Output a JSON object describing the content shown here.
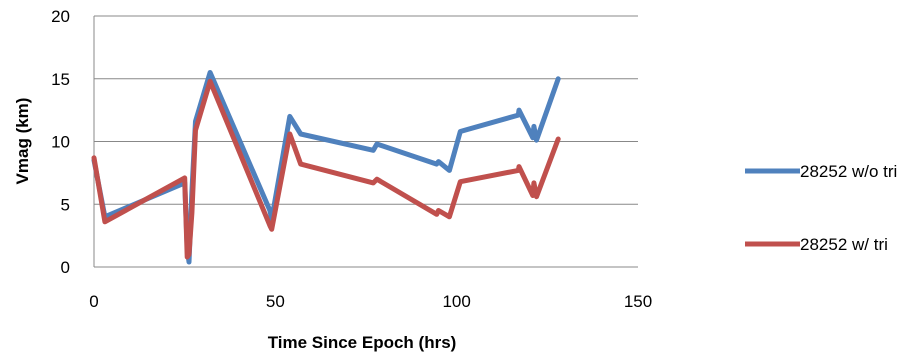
{
  "chart_data": {
    "type": "line",
    "xlabel": "Time Since  Epoch  (hrs)",
    "ylabel": "Vmag (km)",
    "xlim": [
      0,
      150
    ],
    "ylim": [
      0,
      20
    ],
    "xticks": [
      0,
      50,
      100,
      150
    ],
    "yticks": [
      0,
      5,
      10,
      15,
      20
    ],
    "grid": "horizontal",
    "legend_position": "right",
    "series": [
      {
        "name": "28252 w/o tri",
        "color": "#4f81bd",
        "x": [
          0,
          3,
          25,
          25.7,
          26.2,
          27,
          28,
          32,
          48.5,
          49,
          54,
          57,
          77,
          78,
          94.5,
          95,
          98,
          101,
          117,
          117.2,
          121,
          121.3,
          122,
          128
        ],
        "y": [
          8.5,
          4.0,
          6.7,
          1.5,
          0.4,
          6.0,
          11.6,
          15.5,
          4.5,
          3.8,
          12.0,
          10.6,
          9.3,
          9.8,
          8.2,
          8.4,
          7.7,
          10.8,
          12.1,
          12.5,
          10.3,
          11.2,
          10.1,
          15.0
        ]
      },
      {
        "name": "28252 w/ tri",
        "color": "#c0504d",
        "x": [
          0,
          3,
          25,
          25.7,
          26.2,
          27,
          28,
          32,
          48.5,
          49,
          54,
          57,
          77,
          78,
          94.5,
          95,
          98,
          101,
          117,
          117.2,
          121,
          121.3,
          122,
          128
        ],
        "y": [
          8.7,
          3.6,
          7.1,
          0.8,
          1.0,
          4.3,
          10.9,
          14.8,
          3.3,
          3.0,
          10.6,
          8.2,
          6.7,
          7.0,
          4.2,
          4.5,
          4.0,
          6.8,
          7.7,
          8.0,
          5.7,
          6.7,
          5.6,
          10.2
        ]
      }
    ]
  }
}
